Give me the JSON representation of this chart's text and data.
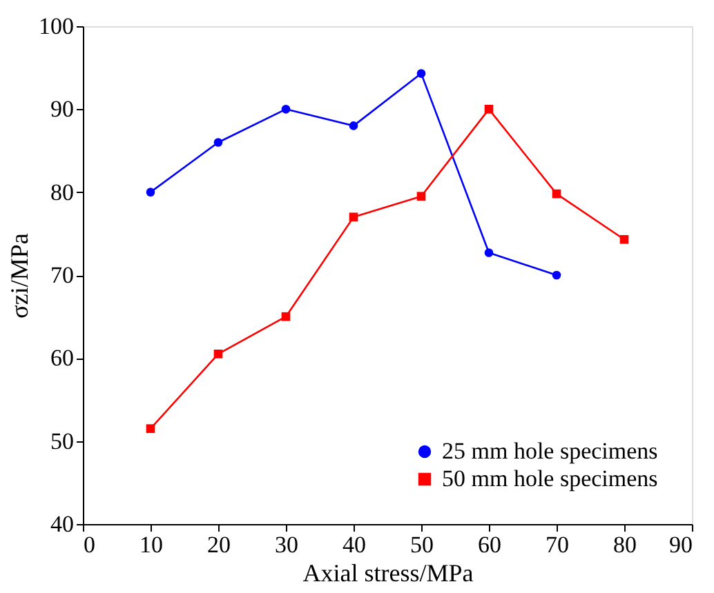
{
  "chart_data": {
    "type": "line",
    "xlabel": "Axial stress/MPa",
    "ylabel": "σzi/MPa",
    "xlim": [
      0,
      90
    ],
    "xticks": [
      0,
      10,
      20,
      30,
      40,
      50,
      60,
      70,
      80,
      90
    ],
    "ylim": [
      40,
      100
    ],
    "yticks": [
      40,
      50,
      60,
      70,
      80,
      90,
      100
    ],
    "grid": false,
    "legend": "bottom right",
    "line_style": "solid",
    "series": [
      {
        "name": "25 mm hole specimens",
        "color": "#0000ff",
        "marker": "circle",
        "x": [
          10,
          20,
          30,
          40,
          50,
          60,
          70
        ],
        "values": [
          80,
          86,
          90,
          88,
          94.3,
          72.7,
          70
        ]
      },
      {
        "name": "50 mm hole specimens",
        "color": "#ff0000",
        "marker": "square",
        "x": [
          10,
          20,
          30,
          40,
          50,
          60,
          70,
          80
        ],
        "values": [
          51.5,
          60.5,
          65,
          77,
          79.5,
          90,
          79.8,
          74.3
        ]
      }
    ]
  }
}
